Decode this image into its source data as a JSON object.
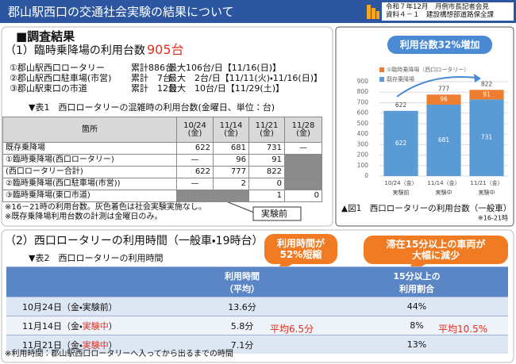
{
  "header": {
    "title": "郡山駅西口の交通社会実験の結果について",
    "info": [
      "令和７年12月　月例市長記者会見",
      "資料４－１　建設構想部道路保全課"
    ]
  },
  "section1": {
    "heading": "■調査結果",
    "subtitle": "（1）臨時乗降場の利用台数",
    "total": "905台",
    "summary": [
      [
        "①郡山駅西口ロータリー",
        "累計886台",
        "最大106台/日【11/16(日)】"
      ],
      [
        "②郡山駅西口駐車場(市営)",
        "累計　7台",
        "最大　2台/日【11/11(火)・11/16(日)】"
      ],
      [
        "③郡山駅東口の市道",
        "累計　12台",
        "最大　10台/日【11/29(土)】"
      ]
    ],
    "table": {
      "caption": "▼表1　西口ロータリーの混雑時の利用台数(金曜日、単位：台)",
      "header": [
        "箇所",
        "10/24\n(金)",
        "11/14\n(金)",
        "11/21\n(金)",
        "11/28\n(金)"
      ],
      "rows": [
        [
          "既存乗降場",
          622,
          681,
          731,
          "—"
        ],
        [
          "①臨時乗降場(西口ロータリー)",
          "—",
          96,
          91,
          null
        ],
        [
          "(西口ロータリー合計)",
          622,
          777,
          822,
          null
        ],
        [
          "②臨時乗降場(西口駐車場(市営))",
          "—",
          2,
          0,
          null
        ],
        [
          "③臨時乗降場(東口市道)",
          null,
          null,
          1,
          0
        ]
      ]
    },
    "notes": [
      "※16－21時の利用台数。灰色着色は社会実験実施なし。",
      "※既存乗降場利用台数の計測は金曜日のみ。"
    ],
    "callout": "実験前"
  },
  "chart_data": {
    "type": "bar",
    "stacked": true,
    "title": "利用台数32%増加",
    "categories": [
      "10/24（金）",
      "11/14（金）",
      "11/21（金）"
    ],
    "category_notes": [
      "実験前",
      "実験中",
      "実験中"
    ],
    "series": [
      {
        "name": "既存乗降場",
        "color": "#5b9bd5",
        "values": [
          622,
          681,
          731
        ]
      },
      {
        "name": "①臨時乗降場（西口ロータリー）",
        "color": "#ed7d31",
        "values": [
          null,
          96,
          91
        ]
      }
    ],
    "totals": [
      622,
      777,
      822
    ],
    "ylim": [
      0,
      900
    ],
    "yticks": [
      0,
      100,
      200,
      300,
      400,
      500,
      600,
      700,
      800,
      900
    ],
    "grid": true,
    "legend": "top-left",
    "caption": "▲図1　西口ロータリーの利用台数（一般車）",
    "note": "※16-21時"
  },
  "section2": {
    "heading": "（2）西口ロータリーの利用時間（一般車・19時台）",
    "callouts": [
      "利用時間が\n52%短縮",
      "滞在15分以上の車両が\n大幅に減少"
    ],
    "table": {
      "caption": "▼表2　西口ロータリーの利用時間",
      "header": [
        "利用時間\n（平均）",
        "15分以上の\n利用割合"
      ],
      "rows": [
        {
          "date": [
            "10月24日（金・",
            "実験前",
            "）"
          ],
          "time": "13.6分",
          "share": "44%"
        },
        {
          "date": [
            "11月14日（金・",
            "実験中",
            "）"
          ],
          "time": "5.8分",
          "share": "8%"
        },
        {
          "date": [
            "11月21日（金・",
            "実験中",
            "）"
          ],
          "time": "7.1分",
          "share": "13%"
        }
      ]
    },
    "averages": [
      "平均6.5分",
      "平均10.5%"
    ],
    "note": "※利用時間：郡山駅西口ロータリーへ入ってから出るまでの時間"
  }
}
